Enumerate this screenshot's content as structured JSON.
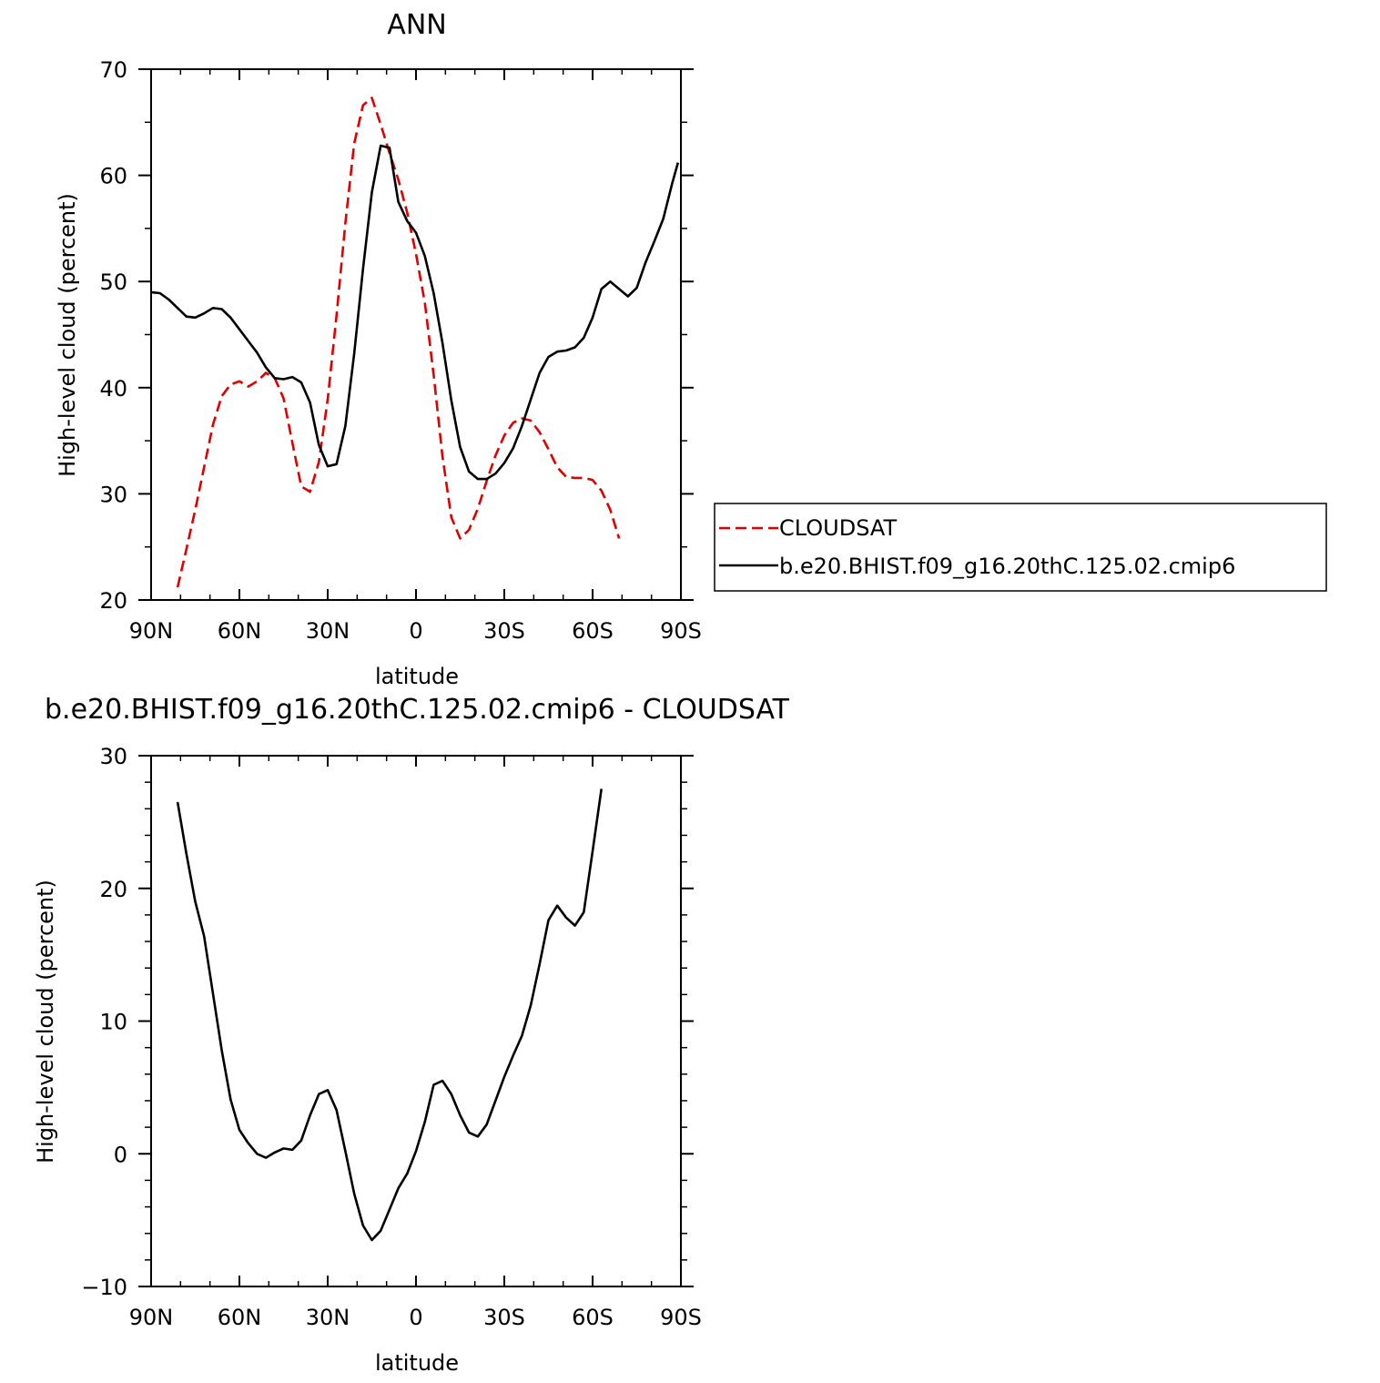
{
  "chart_data": [
    {
      "type": "line",
      "title": "ANN",
      "xlabel": "latitude",
      "ylabel": "High-level cloud (percent)",
      "xlim": [
        90,
        -90
      ],
      "ylim": [
        20,
        70
      ],
      "x_ticks": [
        90,
        60,
        30,
        0,
        -30,
        -60,
        -90
      ],
      "x_tick_labels": [
        "90N",
        "60N",
        "30N",
        "0",
        "30S",
        "60S",
        "90S"
      ],
      "y_ticks": [
        20,
        30,
        40,
        50,
        60,
        70
      ],
      "y_tick_labels": [
        "20",
        "30",
        "40",
        "50",
        "60",
        "70"
      ],
      "legend_position": "right",
      "series": [
        {
          "name": "CLOUDSAT",
          "color": "#e00000",
          "style": "dashed",
          "points": [
            [
              81,
              21.2
            ],
            [
              78,
              24.8
            ],
            [
              75,
              28.5
            ],
            [
              72,
              32.5
            ],
            [
              69,
              36.5
            ],
            [
              66,
              39.2
            ],
            [
              63,
              40.3
            ],
            [
              60,
              40.6
            ],
            [
              57,
              40.1
            ],
            [
              54,
              40.6
            ],
            [
              51,
              41.4
            ],
            [
              48,
              40.9
            ],
            [
              45,
              39.0
            ],
            [
              42,
              34.8
            ],
            [
              39,
              30.7
            ],
            [
              36,
              30.2
            ],
            [
              33,
              33.0
            ],
            [
              30,
              38.9
            ],
            [
              27,
              46.8
            ],
            [
              24,
              55.5
            ],
            [
              21,
              63.0
            ],
            [
              18,
              66.6
            ],
            [
              15,
              67.3
            ],
            [
              12,
              64.8
            ],
            [
              9,
              62.1
            ],
            [
              6,
              59.6
            ],
            [
              3,
              56.5
            ],
            [
              0,
              52.6
            ],
            [
              -3,
              48.0
            ],
            [
              -6,
              41.2
            ],
            [
              -9,
              33.5
            ],
            [
              -12,
              27.8
            ],
            [
              -15,
              25.8
            ],
            [
              -18,
              26.6
            ],
            [
              -21,
              28.6
            ],
            [
              -24,
              31.2
            ],
            [
              -27,
              33.6
            ],
            [
              -30,
              35.5
            ],
            [
              -33,
              36.7
            ],
            [
              -36,
              37.1
            ],
            [
              -39,
              36.9
            ],
            [
              -42,
              35.8
            ],
            [
              -45,
              34.2
            ],
            [
              -48,
              32.5
            ],
            [
              -51,
              31.6
            ],
            [
              -54,
              31.5
            ],
            [
              -57,
              31.5
            ],
            [
              -60,
              31.3
            ],
            [
              -63,
              30.3
            ],
            [
              -66,
              28.5
            ],
            [
              -69,
              25.8
            ]
          ]
        },
        {
          "name": "b.e20.BHIST.f09_g16.20thC.125.02.cmip6",
          "color": "#000000",
          "style": "solid",
          "points": [
            [
              90,
              49.0
            ],
            [
              87,
              48.9
            ],
            [
              84,
              48.3
            ],
            [
              81,
              47.5
            ],
            [
              78,
              46.7
            ],
            [
              75,
              46.6
            ],
            [
              72,
              47.0
            ],
            [
              69,
              47.5
            ],
            [
              66,
              47.4
            ],
            [
              63,
              46.6
            ],
            [
              60,
              45.5
            ],
            [
              57,
              44.4
            ],
            [
              54,
              43.3
            ],
            [
              51,
              41.9
            ],
            [
              48,
              40.9
            ],
            [
              45,
              40.8
            ],
            [
              42,
              41.0
            ],
            [
              39,
              40.5
            ],
            [
              36,
              38.6
            ],
            [
              33,
              34.6
            ],
            [
              30,
              32.6
            ],
            [
              27,
              32.8
            ],
            [
              24,
              36.4
            ],
            [
              21,
              43.2
            ],
            [
              18,
              51.2
            ],
            [
              15,
              58.4
            ],
            [
              12,
              62.8
            ],
            [
              9,
              62.6
            ],
            [
              6,
              57.5
            ],
            [
              3,
              55.7
            ],
            [
              0,
              54.6
            ],
            [
              -3,
              52.4
            ],
            [
              -6,
              48.9
            ],
            [
              -9,
              44.2
            ],
            [
              -12,
              38.8
            ],
            [
              -15,
              34.4
            ],
            [
              -18,
              32.1
            ],
            [
              -21,
              31.4
            ],
            [
              -24,
              31.4
            ],
            [
              -27,
              31.9
            ],
            [
              -30,
              32.9
            ],
            [
              -33,
              34.3
            ],
            [
              -36,
              36.4
            ],
            [
              -39,
              38.9
            ],
            [
              -42,
              41.4
            ],
            [
              -45,
              42.9
            ],
            [
              -48,
              43.4
            ],
            [
              -51,
              43.5
            ],
            [
              -54,
              43.8
            ],
            [
              -57,
              44.7
            ],
            [
              -60,
              46.6
            ],
            [
              -63,
              49.3
            ],
            [
              -66,
              50.0
            ],
            [
              -69,
              49.3
            ],
            [
              -72,
              48.6
            ],
            [
              -75,
              49.4
            ],
            [
              -78,
              51.8
            ],
            [
              -81,
              53.8
            ],
            [
              -84,
              55.9
            ],
            [
              -87,
              59.2
            ],
            [
              -89,
              61.2
            ]
          ]
        }
      ]
    },
    {
      "type": "line",
      "title": "b.e20.BHIST.f09_g16.20thC.125.02.cmip6  -  CLOUDSAT",
      "xlabel": "latitude",
      "ylabel": "High-level cloud (percent)",
      "xlim": [
        90,
        -90
      ],
      "ylim": [
        -10,
        30
      ],
      "x_ticks": [
        90,
        60,
        30,
        0,
        -30,
        -60,
        -90
      ],
      "x_tick_labels": [
        "90N",
        "60N",
        "30N",
        "0",
        "30S",
        "60S",
        "90S"
      ],
      "y_ticks": [
        -10,
        0,
        10,
        20,
        30
      ],
      "y_tick_labels": [
        "−10",
        "0",
        "10",
        "20",
        "30"
      ],
      "series": [
        {
          "color": "#000000",
          "style": "solid",
          "points": [
            [
              81,
              26.5
            ],
            [
              78,
              22.6
            ],
            [
              75,
              19.0
            ],
            [
              72,
              16.4
            ],
            [
              69,
              12.1
            ],
            [
              66,
              7.8
            ],
            [
              63,
              4.1
            ],
            [
              60,
              1.8
            ],
            [
              57,
              0.8
            ],
            [
              54,
              0.0
            ],
            [
              51,
              -0.3
            ],
            [
              48,
              0.1
            ],
            [
              45,
              0.4
            ],
            [
              42,
              0.3
            ],
            [
              39,
              1.0
            ],
            [
              36,
              2.9
            ],
            [
              33,
              4.5
            ],
            [
              30,
              4.8
            ],
            [
              27,
              3.3
            ],
            [
              24,
              0.2
            ],
            [
              21,
              -3.0
            ],
            [
              18,
              -5.4
            ],
            [
              15,
              -6.5
            ],
            [
              12,
              -5.8
            ],
            [
              9,
              -4.2
            ],
            [
              6,
              -2.6
            ],
            [
              3,
              -1.5
            ],
            [
              0,
              0.2
            ],
            [
              -3,
              2.4
            ],
            [
              -6,
              5.2
            ],
            [
              -9,
              5.5
            ],
            [
              -12,
              4.5
            ],
            [
              -15,
              2.9
            ],
            [
              -18,
              1.6
            ],
            [
              -21,
              1.3
            ],
            [
              -24,
              2.2
            ],
            [
              -27,
              4.0
            ],
            [
              -30,
              5.8
            ],
            [
              -33,
              7.4
            ],
            [
              -36,
              8.9
            ],
            [
              -39,
              11.2
            ],
            [
              -42,
              14.3
            ],
            [
              -45,
              17.6
            ],
            [
              -48,
              18.7
            ],
            [
              -51,
              17.8
            ],
            [
              -54,
              17.2
            ],
            [
              -57,
              18.2
            ],
            [
              -60,
              22.8
            ],
            [
              -63,
              27.5
            ]
          ]
        }
      ]
    }
  ]
}
